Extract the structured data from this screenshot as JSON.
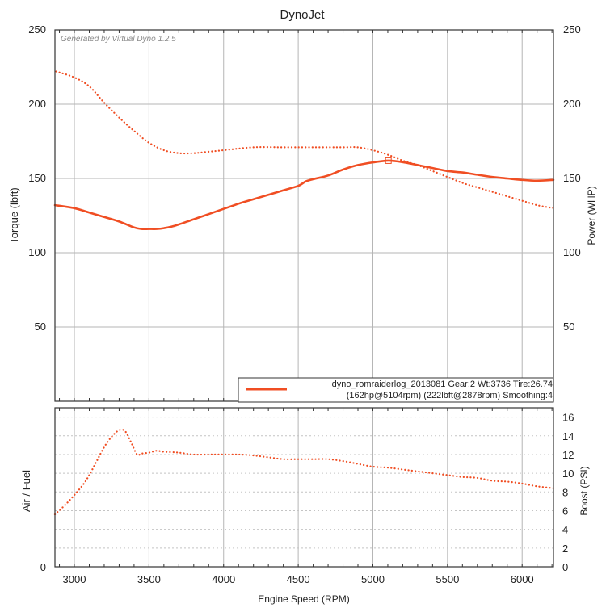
{
  "chart_data": [
    {
      "type": "line",
      "title": "DynoJet",
      "watermark": "Generated by Virtual Dyno 1.2.5",
      "xlabel": "Engine Speed (RPM)",
      "ylabel_left": "Torque (lbft)",
      "ylabel_right": "Power (WHP)",
      "xlim": [
        2870,
        6210
      ],
      "ylim": [
        0,
        250
      ],
      "y_ticks": [
        "50",
        "100",
        "150",
        "200",
        "250"
      ],
      "grid": true,
      "legend_position": "bottom-right",
      "legend_line1": "dyno_romraiderlog_2013081 Gear:2 Wt:3736 Tire:26.74",
      "legend_line2": "(162hp@5104rpm) (222lbft@2878rpm) Smoothing:4",
      "series_color": "#f04e23",
      "series": [
        {
          "name": "Power (WHP)",
          "style": "solid",
          "x": [
            2870,
            3000,
            3100,
            3200,
            3300,
            3400,
            3450,
            3500,
            3550,
            3600,
            3650,
            3700,
            3800,
            3900,
            4000,
            4100,
            4200,
            4300,
            4400,
            4500,
            4550,
            4600,
            4700,
            4800,
            4900,
            5000,
            5104,
            5200,
            5300,
            5400,
            5500,
            5600,
            5700,
            5800,
            5900,
            6000,
            6100,
            6210
          ],
          "y": [
            132,
            130,
            127,
            124,
            121,
            117,
            116,
            116,
            116,
            116.5,
            117.5,
            119,
            122.5,
            126,
            129.5,
            133,
            136,
            139,
            142,
            145,
            148,
            149.5,
            152,
            156,
            159,
            160.8,
            162,
            161,
            159,
            157,
            155,
            154,
            152.5,
            151,
            150,
            149,
            148.5,
            149
          ]
        },
        {
          "name": "Torque (lbft)",
          "style": "dotted",
          "x": [
            2878,
            3000,
            3100,
            3200,
            3300,
            3400,
            3500,
            3600,
            3700,
            3800,
            3900,
            4000,
            4200,
            4400,
            4600,
            4800,
            4900,
            5000,
            5100,
            5200,
            5300,
            5400,
            5500,
            5600,
            5700,
            5800,
            5900,
            6000,
            6100,
            6210
          ],
          "y": [
            222,
            218,
            212,
            201,
            191,
            182,
            174,
            169,
            167,
            167,
            168,
            169,
            171,
            171,
            171,
            171,
            171,
            169,
            166,
            162,
            159,
            155,
            151,
            147,
            144,
            141,
            138,
            135,
            132,
            130
          ]
        }
      ]
    },
    {
      "type": "line",
      "xlabel": "Engine Speed (RPM)",
      "ylabel_left": "Air / Fuel",
      "ylabel_right": "Boost (PSI)",
      "xlim": [
        2870,
        6210
      ],
      "ylim": [
        0,
        17
      ],
      "x_ticks": [
        "3000",
        "3500",
        "4000",
        "4500",
        "5000",
        "5500",
        "6000"
      ],
      "y_ticks_left": [
        "0"
      ],
      "y_ticks_right": [
        "0",
        "2",
        "4",
        "6",
        "8",
        "10",
        "12",
        "14",
        "16"
      ],
      "series": [
        {
          "name": "Boost (PSI)",
          "style": "dotted",
          "x": [
            2870,
            2950,
            3050,
            3100,
            3150,
            3200,
            3250,
            3300,
            3340,
            3380,
            3420,
            3450,
            3500,
            3550,
            3600,
            3700,
            3800,
            3900,
            4000,
            4100,
            4200,
            4300,
            4400,
            4500,
            4600,
            4700,
            4800,
            4900,
            5000,
            5100,
            5200,
            5300,
            5400,
            5500,
            5600,
            5700,
            5800,
            5900,
            6000,
            6100,
            6210
          ],
          "y": [
            5.6,
            6.8,
            8.6,
            9.8,
            11.3,
            12.8,
            13.9,
            14.6,
            14.5,
            13.3,
            12.0,
            12.1,
            12.2,
            12.4,
            12.3,
            12.2,
            12.0,
            12.0,
            12.0,
            12.0,
            11.9,
            11.7,
            11.5,
            11.5,
            11.5,
            11.5,
            11.3,
            11.0,
            10.7,
            10.6,
            10.4,
            10.2,
            10.0,
            9.8,
            9.6,
            9.5,
            9.2,
            9.1,
            8.9,
            8.6,
            8.4
          ]
        }
      ]
    }
  ]
}
